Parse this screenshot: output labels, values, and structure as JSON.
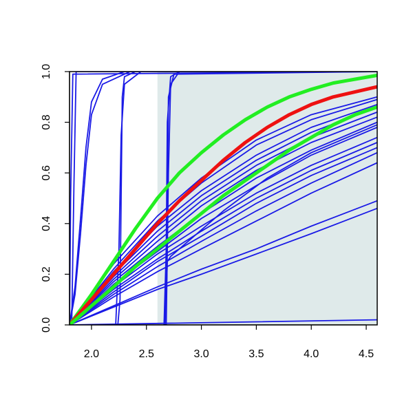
{
  "chart_data": {
    "type": "line",
    "title": "",
    "xlabel": "",
    "ylabel": "",
    "xlim": [
      1.8,
      4.6
    ],
    "ylim": [
      0.0,
      1.0
    ],
    "x_ticks": [
      "2.0",
      "2.5",
      "3.0",
      "3.5",
      "4.0",
      "4.5"
    ],
    "x_tick_values": [
      2.0,
      2.5,
      3.0,
      3.5,
      4.0,
      4.5
    ],
    "y_ticks": [
      "0.0",
      "0.2",
      "0.4",
      "0.6",
      "0.8",
      "1.0"
    ],
    "y_tick_values": [
      0.0,
      0.2,
      0.4,
      0.6,
      0.8,
      1.0
    ],
    "grid": false,
    "shaded_region": {
      "x_from": 2.6,
      "x_to": 4.6,
      "color": "#dfeaea"
    },
    "colors": {
      "blue": "#1a1ae6",
      "red": "#ee1111",
      "green": "#22ee22"
    },
    "series": [
      {
        "color": "blue",
        "emphasis": false,
        "points": [
          [
            1.8,
            0
          ],
          [
            1.81,
            0.5
          ],
          [
            1.83,
            0.99
          ],
          [
            4.6,
            1.0
          ]
        ]
      },
      {
        "color": "blue",
        "emphasis": false,
        "points": [
          [
            1.82,
            0
          ],
          [
            1.84,
            0.55
          ],
          [
            1.86,
            1.0
          ],
          [
            4.6,
            1.0
          ]
        ]
      },
      {
        "color": "blue",
        "emphasis": false,
        "points": [
          [
            1.8,
            0
          ],
          [
            1.85,
            0.15
          ],
          [
            1.9,
            0.42
          ],
          [
            1.95,
            0.7
          ],
          [
            2.0,
            0.88
          ],
          [
            2.1,
            0.97
          ],
          [
            2.3,
            1.0
          ],
          [
            4.6,
            1.0
          ]
        ]
      },
      {
        "color": "blue",
        "emphasis": false,
        "points": [
          [
            1.8,
            0
          ],
          [
            1.85,
            0.12
          ],
          [
            1.9,
            0.36
          ],
          [
            1.95,
            0.63
          ],
          [
            2.0,
            0.83
          ],
          [
            2.1,
            0.95
          ],
          [
            2.35,
            1.0
          ],
          [
            4.6,
            1.0
          ]
        ]
      },
      {
        "color": "blue",
        "emphasis": false,
        "points": [
          [
            2.24,
            0
          ],
          [
            2.26,
            0.1
          ],
          [
            2.27,
            0.5
          ],
          [
            2.28,
            0.9
          ],
          [
            2.3,
            0.98
          ],
          [
            2.4,
            1.0
          ],
          [
            4.6,
            1.0
          ]
        ]
      },
      {
        "color": "blue",
        "emphasis": false,
        "points": [
          [
            2.22,
            0
          ],
          [
            2.25,
            0.3
          ],
          [
            2.27,
            0.75
          ],
          [
            2.3,
            0.95
          ],
          [
            2.45,
            1.0
          ],
          [
            4.6,
            1.0
          ]
        ]
      },
      {
        "color": "blue",
        "emphasis": false,
        "points": [
          [
            2.66,
            0
          ],
          [
            2.68,
            0.3
          ],
          [
            2.69,
            0.8
          ],
          [
            2.72,
            0.98
          ],
          [
            2.8,
            1.0
          ],
          [
            4.6,
            1.0
          ]
        ]
      },
      {
        "color": "blue",
        "emphasis": false,
        "points": [
          [
            2.67,
            0
          ],
          [
            2.69,
            0.5
          ],
          [
            2.7,
            0.9
          ],
          [
            2.75,
            0.99
          ],
          [
            4.6,
            1.0
          ]
        ]
      },
      {
        "color": "blue",
        "emphasis": false,
        "points": [
          [
            2.68,
            0
          ],
          [
            2.7,
            0.6
          ],
          [
            2.72,
            0.95
          ],
          [
            2.8,
            1.0
          ],
          [
            4.6,
            1.0
          ]
        ]
      },
      {
        "color": "blue",
        "emphasis": false,
        "points": [
          [
            2.66,
            0
          ],
          [
            2.68,
            0.12
          ],
          [
            2.69,
            0.25
          ],
          [
            2.72,
            0.27
          ],
          [
            2.8,
            0.3
          ],
          [
            3.2,
            0.45
          ],
          [
            3.6,
            0.58
          ],
          [
            4.0,
            0.68
          ],
          [
            4.6,
            0.79
          ]
        ]
      },
      {
        "color": "blue",
        "emphasis": false,
        "points": [
          [
            1.8,
            0
          ],
          [
            2.2,
            0.24
          ],
          [
            2.6,
            0.43
          ],
          [
            3.0,
            0.58
          ],
          [
            3.5,
            0.73
          ],
          [
            4.0,
            0.83
          ],
          [
            4.6,
            0.9
          ]
        ]
      },
      {
        "color": "blue",
        "emphasis": false,
        "points": [
          [
            1.8,
            0
          ],
          [
            2.2,
            0.22
          ],
          [
            2.6,
            0.41
          ],
          [
            3.0,
            0.56
          ],
          [
            3.5,
            0.71
          ],
          [
            4.0,
            0.81
          ],
          [
            4.6,
            0.89
          ]
        ]
      },
      {
        "color": "blue",
        "emphasis": false,
        "points": [
          [
            1.8,
            0
          ],
          [
            2.2,
            0.21
          ],
          [
            2.6,
            0.39
          ],
          [
            3.0,
            0.53
          ],
          [
            3.5,
            0.67
          ],
          [
            4.0,
            0.78
          ],
          [
            4.6,
            0.87
          ]
        ]
      },
      {
        "color": "blue",
        "emphasis": false,
        "points": [
          [
            1.8,
            0
          ],
          [
            2.2,
            0.2
          ],
          [
            2.6,
            0.37
          ],
          [
            3.0,
            0.51
          ],
          [
            3.5,
            0.65
          ],
          [
            4.0,
            0.76
          ],
          [
            4.6,
            0.86
          ]
        ]
      },
      {
        "color": "blue",
        "emphasis": false,
        "points": [
          [
            1.8,
            0
          ],
          [
            2.2,
            0.19
          ],
          [
            2.6,
            0.35
          ],
          [
            3.0,
            0.49
          ],
          [
            3.5,
            0.63
          ],
          [
            4.0,
            0.74
          ],
          [
            4.6,
            0.84
          ]
        ]
      },
      {
        "color": "blue",
        "emphasis": false,
        "points": [
          [
            1.8,
            0
          ],
          [
            2.2,
            0.18
          ],
          [
            2.6,
            0.33
          ],
          [
            3.0,
            0.47
          ],
          [
            3.5,
            0.61
          ],
          [
            4.0,
            0.72
          ],
          [
            4.6,
            0.82
          ]
        ]
      },
      {
        "color": "blue",
        "emphasis": false,
        "points": [
          [
            1.8,
            0
          ],
          [
            2.2,
            0.17
          ],
          [
            2.6,
            0.31
          ],
          [
            3.0,
            0.44
          ],
          [
            3.5,
            0.58
          ],
          [
            4.0,
            0.69
          ],
          [
            4.6,
            0.8
          ]
        ]
      },
      {
        "color": "blue",
        "emphasis": false,
        "points": [
          [
            1.8,
            0
          ],
          [
            2.2,
            0.16
          ],
          [
            2.6,
            0.29
          ],
          [
            3.0,
            0.42
          ],
          [
            3.5,
            0.55
          ],
          [
            4.0,
            0.67
          ],
          [
            4.6,
            0.78
          ]
        ]
      },
      {
        "color": "blue",
        "emphasis": false,
        "points": [
          [
            1.8,
            0
          ],
          [
            2.2,
            0.15
          ],
          [
            2.6,
            0.28
          ],
          [
            3.0,
            0.39
          ],
          [
            3.5,
            0.52
          ],
          [
            4.0,
            0.63
          ],
          [
            4.6,
            0.74
          ]
        ]
      },
      {
        "color": "blue",
        "emphasis": false,
        "points": [
          [
            1.8,
            0
          ],
          [
            2.2,
            0.14
          ],
          [
            2.6,
            0.26
          ],
          [
            3.0,
            0.37
          ],
          [
            3.5,
            0.5
          ],
          [
            4.0,
            0.61
          ],
          [
            4.6,
            0.72
          ]
        ]
      },
      {
        "color": "blue",
        "emphasis": false,
        "points": [
          [
            1.8,
            0
          ],
          [
            2.2,
            0.13
          ],
          [
            2.6,
            0.25
          ],
          [
            3.0,
            0.35
          ],
          [
            3.5,
            0.48
          ],
          [
            4.0,
            0.59
          ],
          [
            4.6,
            0.7
          ]
        ]
      },
      {
        "color": "blue",
        "emphasis": false,
        "points": [
          [
            1.8,
            0
          ],
          [
            2.2,
            0.12
          ],
          [
            2.6,
            0.23
          ],
          [
            3.0,
            0.33
          ],
          [
            3.5,
            0.45
          ],
          [
            4.0,
            0.56
          ],
          [
            4.6,
            0.68
          ]
        ]
      },
      {
        "color": "blue",
        "emphasis": false,
        "points": [
          [
            1.8,
            0
          ],
          [
            2.2,
            0.11
          ],
          [
            2.6,
            0.21
          ],
          [
            3.0,
            0.3
          ],
          [
            3.5,
            0.41
          ],
          [
            4.0,
            0.52
          ],
          [
            4.6,
            0.64
          ]
        ]
      },
      {
        "color": "blue",
        "emphasis": false,
        "points": [
          [
            1.8,
            0
          ],
          [
            2.6,
            0.14
          ],
          [
            3.0,
            0.2
          ],
          [
            3.5,
            0.28
          ],
          [
            4.0,
            0.36
          ],
          [
            4.6,
            0.46
          ]
        ]
      },
      {
        "color": "blue",
        "emphasis": false,
        "points": [
          [
            1.8,
            0
          ],
          [
            2.6,
            0.15
          ],
          [
            3.0,
            0.22
          ],
          [
            3.5,
            0.3
          ],
          [
            4.0,
            0.39
          ],
          [
            4.6,
            0.49
          ]
        ]
      },
      {
        "color": "blue",
        "emphasis": false,
        "points": [
          [
            1.8,
            0
          ],
          [
            4.6,
            0.02
          ]
        ]
      },
      {
        "color": "green",
        "emphasis": true,
        "points": [
          [
            1.8,
            0
          ],
          [
            2.0,
            0.12
          ],
          [
            2.2,
            0.25
          ],
          [
            2.4,
            0.38
          ],
          [
            2.6,
            0.5
          ],
          [
            2.8,
            0.6
          ],
          [
            3.0,
            0.68
          ],
          [
            3.2,
            0.75
          ],
          [
            3.4,
            0.81
          ],
          [
            3.6,
            0.86
          ],
          [
            3.8,
            0.9
          ],
          [
            4.0,
            0.93
          ],
          [
            4.2,
            0.955
          ],
          [
            4.4,
            0.97
          ],
          [
            4.6,
            0.985
          ]
        ]
      },
      {
        "color": "red",
        "emphasis": true,
        "points": [
          [
            1.8,
            0
          ],
          [
            2.0,
            0.1
          ],
          [
            2.2,
            0.2
          ],
          [
            2.4,
            0.3
          ],
          [
            2.6,
            0.4
          ],
          [
            2.8,
            0.49
          ],
          [
            3.0,
            0.57
          ],
          [
            3.2,
            0.65
          ],
          [
            3.4,
            0.72
          ],
          [
            3.6,
            0.78
          ],
          [
            3.8,
            0.83
          ],
          [
            4.0,
            0.87
          ],
          [
            4.2,
            0.9
          ],
          [
            4.4,
            0.92
          ],
          [
            4.6,
            0.94
          ]
        ]
      },
      {
        "color": "green",
        "emphasis": true,
        "points": [
          [
            1.8,
            0
          ],
          [
            2.0,
            0.075
          ],
          [
            2.2,
            0.15
          ],
          [
            2.4,
            0.23
          ],
          [
            2.6,
            0.3
          ],
          [
            2.8,
            0.37
          ],
          [
            3.0,
            0.44
          ],
          [
            3.2,
            0.51
          ],
          [
            3.4,
            0.57
          ],
          [
            3.6,
            0.63
          ],
          [
            3.8,
            0.69
          ],
          [
            4.0,
            0.74
          ],
          [
            4.2,
            0.79
          ],
          [
            4.4,
            0.83
          ],
          [
            4.6,
            0.86
          ]
        ]
      }
    ]
  }
}
